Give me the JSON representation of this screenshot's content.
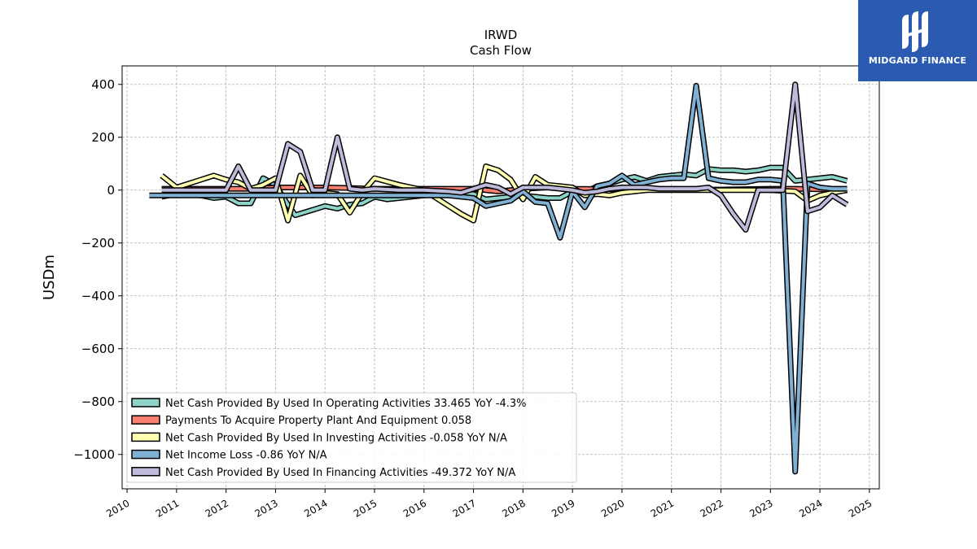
{
  "chart_data": {
    "type": "line",
    "title": "IRWD",
    "subtitle": "Cash Flow",
    "xlabel": "",
    "ylabel": "USDm",
    "xlim": [
      2009.9,
      2025.2
    ],
    "ylim": [
      -1130,
      470
    ],
    "x_ticks": [
      "2010",
      "2011",
      "2012",
      "2013",
      "2014",
      "2015",
      "2016",
      "2017",
      "2018",
      "2019",
      "2020",
      "2021",
      "2022",
      "2023",
      "2024",
      "2025"
    ],
    "y_ticks": [
      "400",
      "200",
      "0",
      "−200",
      "−400",
      "−600",
      "−800",
      "−1000"
    ],
    "y_tick_values": [
      400,
      200,
      0,
      -200,
      -400,
      -600,
      -800,
      -1000
    ],
    "grid": true,
    "legend_position": "lower-left",
    "series": [
      {
        "name": "Net Cash Provided By Used In Operating Activities",
        "legend": "Net Cash Provided By Used In Operating Activities  33.465 YoY -4.3%",
        "color": "#8dd3c7",
        "points": [
          [
            2010.7,
            -25
          ],
          [
            2011.0,
            -15
          ],
          [
            2011.5,
            -20
          ],
          [
            2011.75,
            -30
          ],
          [
            2012.0,
            -25
          ],
          [
            2012.25,
            -50
          ],
          [
            2012.5,
            -50
          ],
          [
            2012.75,
            45
          ],
          [
            2013.0,
            20
          ],
          [
            2013.25,
            -55
          ],
          [
            2013.4,
            -95
          ],
          [
            2013.75,
            -75
          ],
          [
            2014.0,
            -60
          ],
          [
            2014.25,
            -70
          ],
          [
            2014.5,
            -55
          ],
          [
            2014.75,
            -50
          ],
          [
            2015.0,
            -25
          ],
          [
            2015.25,
            -35
          ],
          [
            2015.5,
            -30
          ],
          [
            2016.0,
            -20
          ],
          [
            2016.5,
            -15
          ],
          [
            2017.0,
            -15
          ],
          [
            2017.25,
            -35
          ],
          [
            2017.5,
            -30
          ],
          [
            2017.75,
            -25
          ],
          [
            2018.0,
            -20
          ],
          [
            2018.25,
            -25
          ],
          [
            2018.5,
            -30
          ],
          [
            2018.75,
            -30
          ],
          [
            2019.0,
            -5
          ],
          [
            2019.25,
            -10
          ],
          [
            2019.5,
            15
          ],
          [
            2019.75,
            25
          ],
          [
            2020.0,
            40
          ],
          [
            2020.25,
            50
          ],
          [
            2020.5,
            35
          ],
          [
            2020.75,
            50
          ],
          [
            2021.0,
            55
          ],
          [
            2021.25,
            60
          ],
          [
            2021.5,
            55
          ],
          [
            2021.75,
            80
          ],
          [
            2022.0,
            75
          ],
          [
            2022.25,
            75
          ],
          [
            2022.5,
            70
          ],
          [
            2022.75,
            75
          ],
          [
            2023.0,
            85
          ],
          [
            2023.25,
            85
          ],
          [
            2023.5,
            35
          ],
          [
            2023.75,
            40
          ],
          [
            2024.0,
            45
          ],
          [
            2024.25,
            50
          ],
          [
            2024.55,
            35
          ]
        ]
      },
      {
        "name": "Payments To Acquire Property Plant And Equipment",
        "legend": "Payments To Acquire Property Plant And Equipment  0.058",
        "color": "#fb8072",
        "points": [
          [
            2010.7,
            5
          ],
          [
            2011.5,
            5
          ],
          [
            2012.5,
            5
          ],
          [
            2013.0,
            10
          ],
          [
            2013.5,
            10
          ],
          [
            2014.0,
            10
          ],
          [
            2014.5,
            8
          ],
          [
            2015.0,
            5
          ],
          [
            2016.0,
            5
          ],
          [
            2017.0,
            5
          ],
          [
            2017.5,
            -5
          ],
          [
            2018.0,
            5
          ],
          [
            2018.5,
            10
          ],
          [
            2019.0,
            5
          ],
          [
            2020.0,
            3
          ],
          [
            2021.0,
            2
          ],
          [
            2022.0,
            2
          ],
          [
            2023.0,
            5
          ],
          [
            2023.25,
            5
          ],
          [
            2023.5,
            5
          ],
          [
            2024.0,
            3
          ],
          [
            2024.55,
            0
          ]
        ]
      },
      {
        "name": "Net Cash Provided By Used In Investing Activities",
        "legend": "Net Cash Provided By Used In Investing Activities  -0.058 YoY N/A",
        "color": "#ffffb3",
        "points": [
          [
            2010.7,
            55
          ],
          [
            2011.0,
            10
          ],
          [
            2011.5,
            40
          ],
          [
            2011.75,
            55
          ],
          [
            2012.0,
            40
          ],
          [
            2012.25,
            30
          ],
          [
            2012.5,
            5
          ],
          [
            2012.75,
            20
          ],
          [
            2013.0,
            45
          ],
          [
            2013.25,
            -115
          ],
          [
            2013.5,
            55
          ],
          [
            2013.75,
            -20
          ],
          [
            2014.0,
            -10
          ],
          [
            2014.25,
            -15
          ],
          [
            2014.5,
            -85
          ],
          [
            2014.75,
            -10
          ],
          [
            2015.0,
            45
          ],
          [
            2015.5,
            20
          ],
          [
            2016.0,
            0
          ],
          [
            2016.5,
            -60
          ],
          [
            2016.75,
            -90
          ],
          [
            2017.0,
            -115
          ],
          [
            2017.25,
            90
          ],
          [
            2017.5,
            75
          ],
          [
            2017.75,
            40
          ],
          [
            2018.0,
            -35
          ],
          [
            2018.25,
            50
          ],
          [
            2018.5,
            20
          ],
          [
            2018.75,
            15
          ],
          [
            2019.0,
            10
          ],
          [
            2019.25,
            -20
          ],
          [
            2019.5,
            -15
          ],
          [
            2019.75,
            -20
          ],
          [
            2020.0,
            -10
          ],
          [
            2020.5,
            0
          ],
          [
            2021.0,
            0
          ],
          [
            2022.0,
            0
          ],
          [
            2023.0,
            0
          ],
          [
            2023.5,
            -5
          ],
          [
            2023.75,
            -40
          ],
          [
            2024.0,
            -20
          ],
          [
            2024.25,
            -10
          ],
          [
            2024.55,
            0
          ]
        ]
      },
      {
        "name": "Net Income Loss",
        "legend": "Net Income Loss  -0.86 YoY N/A",
        "color": "#80b1d3",
        "points": [
          [
            2010.45,
            -20
          ],
          [
            2011.0,
            -20
          ],
          [
            2011.5,
            -20
          ],
          [
            2012.0,
            -20
          ],
          [
            2012.5,
            -20
          ],
          [
            2013.0,
            -20
          ],
          [
            2013.5,
            -20
          ],
          [
            2014.0,
            -20
          ],
          [
            2014.5,
            -20
          ],
          [
            2015.0,
            -20
          ],
          [
            2015.5,
            -20
          ],
          [
            2016.0,
            -20
          ],
          [
            2016.5,
            -20
          ],
          [
            2016.75,
            -25
          ],
          [
            2017.0,
            -30
          ],
          [
            2017.25,
            -60
          ],
          [
            2017.5,
            -50
          ],
          [
            2017.75,
            -40
          ],
          [
            2018.0,
            -5
          ],
          [
            2018.25,
            -45
          ],
          [
            2018.5,
            -50
          ],
          [
            2018.75,
            -180
          ],
          [
            2019.0,
            -5
          ],
          [
            2019.25,
            -65
          ],
          [
            2019.5,
            15
          ],
          [
            2019.75,
            25
          ],
          [
            2020.0,
            55
          ],
          [
            2020.25,
            20
          ],
          [
            2020.5,
            30
          ],
          [
            2020.75,
            40
          ],
          [
            2021.0,
            45
          ],
          [
            2021.25,
            45
          ],
          [
            2021.5,
            395
          ],
          [
            2021.75,
            45
          ],
          [
            2022.0,
            35
          ],
          [
            2022.25,
            30
          ],
          [
            2022.5,
            30
          ],
          [
            2022.75,
            40
          ],
          [
            2023.0,
            40
          ],
          [
            2023.25,
            35
          ],
          [
            2023.5,
            -1065
          ],
          [
            2023.75,
            25
          ],
          [
            2024.0,
            10
          ],
          [
            2024.25,
            5
          ],
          [
            2024.55,
            5
          ]
        ]
      },
      {
        "name": "Net Cash Provided By Used In Financing Activities",
        "legend": "Net Cash Provided By Used In Financing Activities  -49.372 YoY N/A",
        "color": "#bebada",
        "points": [
          [
            2010.7,
            0
          ],
          [
            2011.0,
            0
          ],
          [
            2011.5,
            0
          ],
          [
            2012.0,
            0
          ],
          [
            2012.25,
            90
          ],
          [
            2012.5,
            0
          ],
          [
            2013.0,
            0
          ],
          [
            2013.25,
            175
          ],
          [
            2013.5,
            145
          ],
          [
            2013.75,
            0
          ],
          [
            2014.0,
            0
          ],
          [
            2014.25,
            200
          ],
          [
            2014.5,
            5
          ],
          [
            2014.75,
            0
          ],
          [
            2015.0,
            5
          ],
          [
            2015.5,
            0
          ],
          [
            2016.0,
            0
          ],
          [
            2016.5,
            -5
          ],
          [
            2016.75,
            -10
          ],
          [
            2017.0,
            5
          ],
          [
            2017.25,
            20
          ],
          [
            2017.5,
            10
          ],
          [
            2017.75,
            -15
          ],
          [
            2018.0,
            10
          ],
          [
            2018.25,
            10
          ],
          [
            2018.5,
            10
          ],
          [
            2018.75,
            5
          ],
          [
            2019.0,
            0
          ],
          [
            2019.25,
            -10
          ],
          [
            2019.5,
            -5
          ],
          [
            2019.75,
            5
          ],
          [
            2020.0,
            10
          ],
          [
            2020.25,
            10
          ],
          [
            2020.5,
            10
          ],
          [
            2020.75,
            5
          ],
          [
            2021.0,
            5
          ],
          [
            2021.25,
            5
          ],
          [
            2021.5,
            5
          ],
          [
            2021.75,
            10
          ],
          [
            2022.0,
            -20
          ],
          [
            2022.25,
            -90
          ],
          [
            2022.5,
            -150
          ],
          [
            2022.75,
            0
          ],
          [
            2023.0,
            0
          ],
          [
            2023.25,
            0
          ],
          [
            2023.5,
            400
          ],
          [
            2023.75,
            -80
          ],
          [
            2024.0,
            -65
          ],
          [
            2024.25,
            -20
          ],
          [
            2024.55,
            -55
          ]
        ]
      }
    ]
  },
  "logo": {
    "text": "MIDGARD FINANCE",
    "color": "#2a5bb0"
  }
}
